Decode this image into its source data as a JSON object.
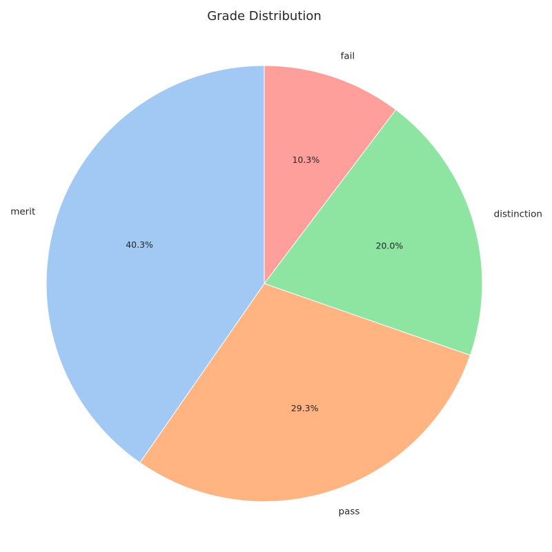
{
  "chart_data": {
    "type": "pie",
    "title": "Grade Distribution",
    "start_angle_deg": 90,
    "direction": "clockwise",
    "slices": [
      {
        "label": "fail",
        "value": 10.3,
        "pct_label": "10.3%",
        "color": "#ff9f9b"
      },
      {
        "label": "distinction",
        "value": 20.0,
        "pct_label": "20.0%",
        "color": "#8de5a1"
      },
      {
        "label": "pass",
        "value": 29.3,
        "pct_label": "29.3%",
        "color": "#ffb482"
      },
      {
        "label": "merit",
        "value": 40.3,
        "pct_label": "40.3%",
        "color": "#a1c9f4"
      }
    ]
  }
}
